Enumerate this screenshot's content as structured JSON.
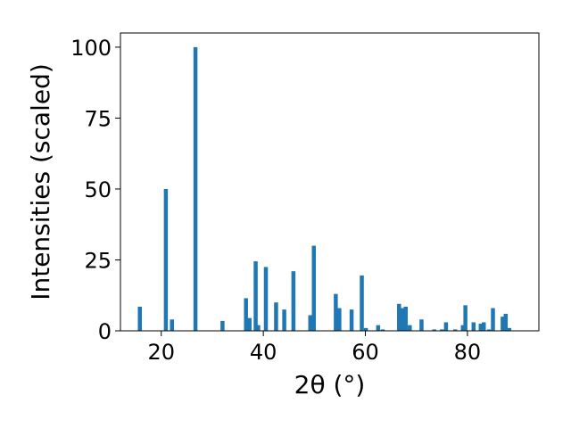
{
  "chart_data": {
    "type": "bar",
    "title": "",
    "xlabel": "2θ (°)",
    "ylabel": "Intensities (scaled)",
    "xlim": [
      12,
      94
    ],
    "ylim": [
      0,
      105
    ],
    "xticks": [
      20,
      40,
      60,
      80
    ],
    "yticks": [
      0,
      25,
      50,
      75,
      100
    ],
    "grid": false,
    "bar_color": "#1f77b4",
    "x": [
      15.8,
      20.9,
      22.1,
      26.7,
      32.0,
      36.6,
      37.3,
      38.5,
      39.0,
      40.5,
      42.5,
      44.1,
      45.9,
      49.2,
      49.9,
      54.2,
      54.9,
      57.3,
      59.3,
      60.1,
      62.5,
      63.4,
      66.6,
      67.3,
      67.9,
      68.7,
      71.0,
      73.5,
      75.0,
      75.8,
      77.6,
      79.1,
      79.6,
      81.2,
      82.6,
      83.2,
      84.2,
      85.0,
      86.9,
      87.5,
      88.2
    ],
    "values": [
      8.5,
      50,
      4,
      100,
      3.5,
      11.5,
      4.5,
      24.5,
      2,
      22.5,
      10,
      7.5,
      21,
      5.5,
      30,
      13,
      8,
      7.5,
      19.5,
      1,
      2,
      0.5,
      9.5,
      8,
      8.5,
      2,
      4,
      0.5,
      0.5,
      3,
      0.5,
      2,
      9,
      3,
      2.5,
      3,
      0.5,
      8,
      5,
      6,
      1
    ]
  }
}
